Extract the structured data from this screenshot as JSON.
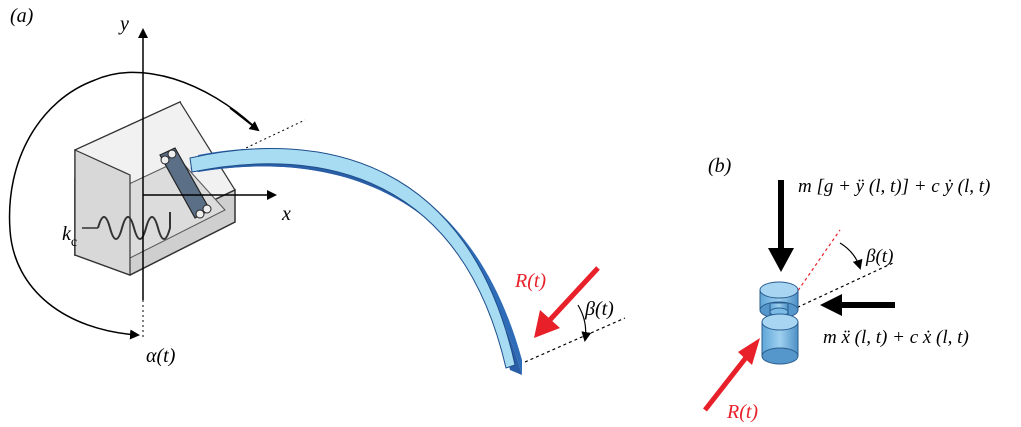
{
  "panel_a": {
    "label": "(a)",
    "y_axis": "y",
    "x_axis": "x",
    "k_main": "k",
    "k_sub": "c",
    "alpha": "α(t)",
    "beta": "β(t)",
    "force": "R(t)"
  },
  "panel_b": {
    "label": "(b)",
    "vertical_force": "m [g + ÿ (l, t)] + c ẏ (l, t)",
    "horizontal_force": "m ẍ (l, t) + c ẋ (l, t)",
    "beta": "β(t)",
    "force": "R(t)"
  },
  "colors": {
    "beam_light": "#a8dcf3",
    "beam_dark": "#2f6cb8",
    "force_red": "#e8202a",
    "box_grey": "#dcdcdc"
  }
}
